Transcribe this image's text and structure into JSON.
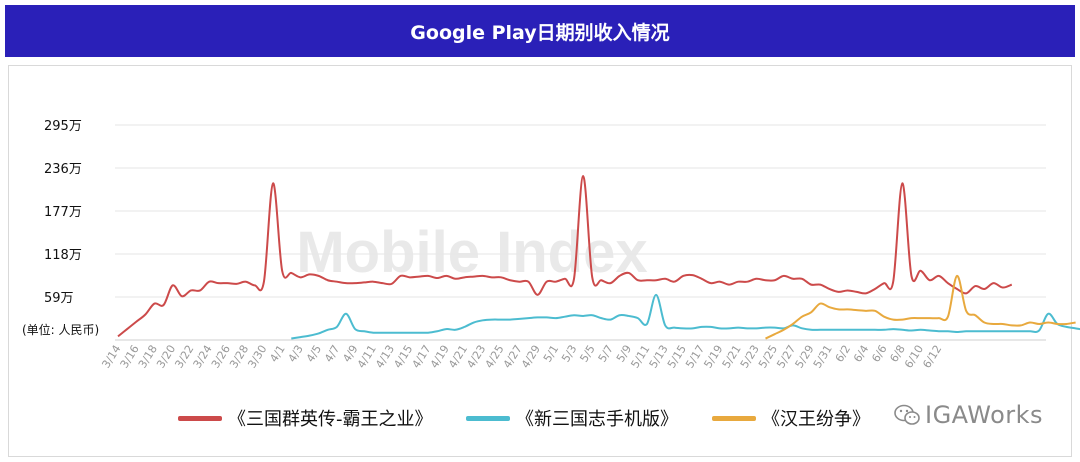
{
  "header": {
    "title": "Google Play日期别收入情况"
  },
  "watermark": {
    "text": "Mobile Index"
  },
  "logo": {
    "text": "IGAWorks",
    "icon": "wechat-icon"
  },
  "colors": {
    "header_bg": "#2a20b8",
    "series1": "#cc4a4a",
    "series2": "#4cbcd0",
    "series3": "#e8a93e",
    "grid": "#e6e6e6"
  },
  "chart_data": {
    "type": "line",
    "unit_label": "(单位: 人民币)",
    "title": "Google Play日期别收入情况",
    "yticks": [
      "59万",
      "118万",
      "177万",
      "236万",
      "295万"
    ],
    "ytick_values": [
      59,
      118,
      177,
      236,
      295
    ],
    "ylim": [
      0,
      295
    ],
    "xticks": [
      "3/14",
      "3/16",
      "3/18",
      "3/20",
      "3/22",
      "3/24",
      "3/26",
      "3/28",
      "3/30",
      "4/1",
      "4/3",
      "4/5",
      "4/7",
      "4/9",
      "4/11",
      "4/13",
      "4/15",
      "4/17",
      "4/19",
      "4/21",
      "4/23",
      "4/25",
      "4/27",
      "4/29",
      "5/1",
      "5/3",
      "5/5",
      "5/7",
      "5/9",
      "5/11",
      "5/13",
      "5/15",
      "5/17",
      "5/19",
      "5/21",
      "5/23",
      "5/25",
      "5/27",
      "5/29",
      "5/31",
      "6/2",
      "6/4",
      "6/6",
      "6/8",
      "6/10",
      "6/12"
    ],
    "grid": true,
    "legend_position": "bottom",
    "series": [
      {
        "name": "《三国群英传-霸王之业》",
        "start_index": 0,
        "values": [
          5,
          15,
          25,
          35,
          50,
          48,
          75,
          60,
          68,
          68,
          80,
          78,
          78,
          77,
          80,
          75,
          80,
          215,
          95,
          92,
          86,
          90,
          88,
          82,
          80,
          78,
          78,
          79,
          80,
          78,
          77,
          88,
          86,
          87,
          88,
          85,
          88,
          84,
          86,
          87,
          88,
          86,
          86,
          82,
          80,
          80,
          62,
          80,
          80,
          84,
          84,
          225,
          86,
          82,
          78,
          88,
          92,
          82,
          82,
          82,
          84,
          80,
          88,
          89,
          84,
          78,
          80,
          76,
          80,
          80,
          84,
          82,
          82,
          88,
          84,
          84,
          76,
          76,
          70,
          66,
          68,
          66,
          64,
          70,
          78,
          80,
          215,
          88,
          95,
          82,
          88,
          78,
          70,
          64,
          74,
          70,
          78,
          72,
          76
        ]
      },
      {
        "name": "《新三国志手机版》",
        "start_index": 19,
        "values": [
          2,
          4,
          6,
          9,
          14,
          18,
          36,
          15,
          12,
          10,
          10,
          10,
          10,
          10,
          10,
          10,
          12,
          15,
          14,
          18,
          24,
          27,
          28,
          28,
          28,
          29,
          30,
          31,
          31,
          30,
          32,
          34,
          33,
          34,
          30,
          28,
          34,
          33,
          30,
          22,
          62,
          20,
          17,
          16,
          16,
          18,
          18,
          16,
          16,
          17,
          16,
          16,
          17,
          17,
          16,
          20,
          16,
          14,
          14,
          14,
          14,
          14,
          14,
          14,
          14,
          14,
          15,
          14,
          13,
          14,
          13,
          12,
          12,
          11,
          12,
          12,
          12,
          12,
          12,
          12,
          12,
          12,
          13,
          36,
          22,
          18,
          16,
          14,
          14,
          12,
          12,
          16,
          18,
          16,
          18,
          14,
          13
        ]
      },
      {
        "name": "《汉王纷争》",
        "start_index": 71,
        "values": [
          2,
          8,
          14,
          22,
          32,
          38,
          50,
          45,
          42,
          42,
          41,
          40,
          40,
          32,
          28,
          28,
          30,
          30,
          30,
          30,
          32,
          88,
          40,
          34,
          24,
          22,
          22,
          20,
          20,
          24,
          22,
          24,
          22,
          22,
          24
        ]
      }
    ]
  }
}
